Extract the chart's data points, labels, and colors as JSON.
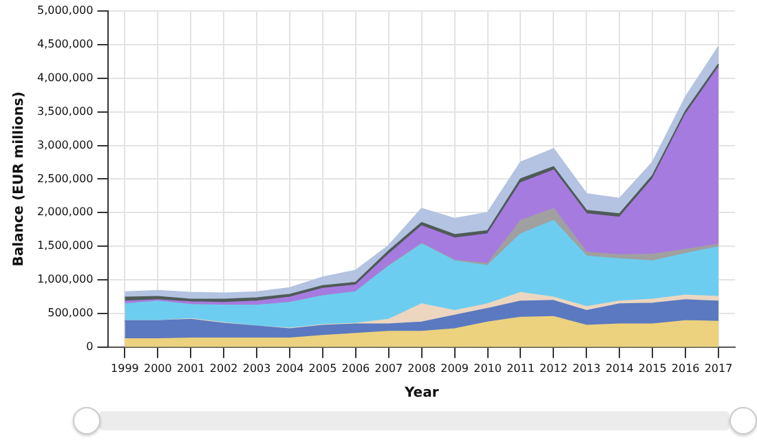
{
  "chart_data": {
    "type": "area",
    "stacked": true,
    "xlabel": "Year",
    "ylabel": "Balance (EUR millions)",
    "categories": [
      "1999",
      "2000",
      "2001",
      "2002",
      "2003",
      "2004",
      "2005",
      "2006",
      "2007",
      "2008",
      "2009",
      "2010",
      "2011",
      "2012",
      "2013",
      "2014",
      "2015",
      "2016",
      "2017"
    ],
    "series": [
      {
        "color": "#ecd27f",
        "values": [
          120000,
          120000,
          130000,
          130000,
          130000,
          130000,
          170000,
          200000,
          230000,
          230000,
          270000,
          370000,
          440000,
          450000,
          320000,
          340000,
          340000,
          390000,
          380000
        ]
      },
      {
        "color": "#5b79c0",
        "values": [
          270000,
          270000,
          280000,
          220000,
          180000,
          140000,
          150000,
          140000,
          110000,
          140000,
          200000,
          200000,
          240000,
          240000,
          220000,
          300000,
          310000,
          310000,
          300000
        ]
      },
      {
        "color": "#ecd6c0",
        "values": [
          0,
          0,
          10000,
          10000,
          0,
          10000,
          10000,
          10000,
          70000,
          270000,
          70000,
          70000,
          130000,
          50000,
          60000,
          40000,
          60000,
          70000,
          70000
        ]
      },
      {
        "color": "#6dcdf0",
        "values": [
          250000,
          290000,
          210000,
          260000,
          310000,
          380000,
          430000,
          470000,
          790000,
          890000,
          740000,
          570000,
          870000,
          1140000,
          750000,
          630000,
          570000,
          620000,
          740000
        ]
      },
      {
        "color": "#a0a0a0",
        "values": [
          0,
          0,
          0,
          0,
          0,
          0,
          0,
          0,
          10000,
          10000,
          10000,
          30000,
          200000,
          180000,
          60000,
          60000,
          100000,
          60000,
          40000
        ]
      },
      {
        "color": "#a67be0",
        "values": [
          40000,
          20000,
          40000,
          40000,
          60000,
          80000,
          110000,
          100000,
          170000,
          260000,
          330000,
          440000,
          560000,
          570000,
          570000,
          560000,
          1120000,
          2010000,
          2630000
        ]
      },
      {
        "color": "#4f5b58",
        "values": [
          60000,
          50000,
          40000,
          50000,
          50000,
          40000,
          40000,
          40000,
          50000,
          50000,
          50000,
          50000,
          60000,
          50000,
          50000,
          50000,
          50000,
          50000,
          50000
        ]
      },
      {
        "color": "#b3c3e1",
        "values": [
          80000,
          90000,
          100000,
          90000,
          90000,
          100000,
          130000,
          180000,
          80000,
          210000,
          240000,
          270000,
          250000,
          270000,
          250000,
          230000,
          200000,
          210000,
          260000
        ]
      }
    ],
    "ylim": [
      0,
      5000000
    ],
    "yticks": [
      {
        "value": 0,
        "label": "0"
      },
      {
        "value": 500000,
        "label": "500,000"
      },
      {
        "value": 1000000,
        "label": "1,000,000"
      },
      {
        "value": 1500000,
        "label": "1,500,000"
      },
      {
        "value": 2000000,
        "label": "2,000,000"
      },
      {
        "value": 2500000,
        "label": "2,500,000"
      },
      {
        "value": 3000000,
        "label": "3,000,000"
      },
      {
        "value": 3500000,
        "label": "3,500,000"
      },
      {
        "value": 4000000,
        "label": "4,000,000"
      },
      {
        "value": 4500000,
        "label": "4,500,000"
      },
      {
        "value": 5000000,
        "label": "5,000,000"
      }
    ],
    "grid": true,
    "legend": false,
    "marker": "none"
  }
}
